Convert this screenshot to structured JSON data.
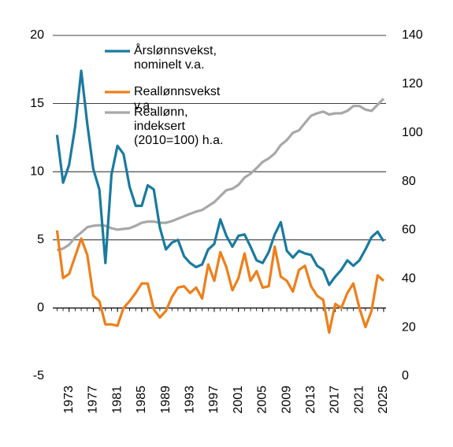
{
  "chart_data": {
    "type": "line",
    "x": [
      1971,
      1972,
      1973,
      1974,
      1975,
      1976,
      1977,
      1978,
      1979,
      1980,
      1981,
      1982,
      1983,
      1984,
      1985,
      1986,
      1987,
      1988,
      1989,
      1990,
      1991,
      1992,
      1993,
      1994,
      1995,
      1996,
      1997,
      1998,
      1999,
      2000,
      2001,
      2002,
      2003,
      2004,
      2005,
      2006,
      2007,
      2008,
      2009,
      2010,
      2011,
      2012,
      2013,
      2014,
      2015,
      2016,
      2017,
      2018,
      2019,
      2020,
      2021,
      2022,
      2023,
      2024,
      2025
    ],
    "xlim": [
      1970.3,
      2025.4
    ],
    "xticks": [
      1973,
      1977,
      1981,
      1985,
      1989,
      1993,
      1997,
      2001,
      2005,
      2009,
      2013,
      2017,
      2021,
      2025
    ],
    "ylim": [
      -5,
      20
    ],
    "yticks": [
      -5,
      0,
      5,
      10,
      15,
      20
    ],
    "y2lim": [
      0,
      140
    ],
    "y2ticks": [
      0,
      20,
      40,
      60,
      80,
      100,
      120,
      140
    ],
    "grid": true,
    "series": [
      {
        "name": "Årslønnsvekst, nominelt v.a.",
        "color": "#1a7aa0",
        "values": [
          12.7,
          9.2,
          10.5,
          13.3,
          17.4,
          13.5,
          10.2,
          8.7,
          3.3,
          9.8,
          11.9,
          11.3,
          8.9,
          7.5,
          7.5,
          9.0,
          8.7,
          5.9,
          4.3,
          4.8,
          5.0,
          3.8,
          3.3,
          3.0,
          3.2,
          4.3,
          4.7,
          6.5,
          5.3,
          4.5,
          5.3,
          5.4,
          4.5,
          3.5,
          3.3,
          4.1,
          5.4,
          6.3,
          4.2,
          3.7,
          4.2,
          4.0,
          3.9,
          3.1,
          2.8,
          1.7,
          2.3,
          2.8,
          3.5,
          3.1,
          3.5,
          4.3,
          5.2,
          5.6,
          4.9
        ]
      },
      {
        "name": "Reallønnsvekst v.a.",
        "color": "#ee7f1a",
        "values": [
          5.7,
          2.2,
          2.5,
          3.8,
          5.1,
          3.9,
          0.9,
          0.5,
          -1.2,
          -1.2,
          -1.3,
          0.0,
          0.5,
          1.1,
          1.8,
          1.8,
          -0.1,
          -0.7,
          -0.2,
          0.8,
          1.5,
          1.6,
          1.1,
          1.5,
          0.7,
          3.2,
          2.0,
          4.1,
          3.0,
          1.3,
          2.2,
          4.0,
          2.0,
          2.7,
          1.5,
          1.6,
          4.5,
          2.3,
          2.0,
          1.2,
          2.8,
          3.1,
          1.6,
          0.9,
          0.6,
          -1.8,
          0.3,
          0.0,
          1.1,
          1.8,
          0.0,
          -1.4,
          -0.2,
          2.4,
          2.0
        ]
      },
      {
        "name": "Reallønn, indeksert (2010=100) h.a.",
        "color": "#a8a8a8",
        "axis": "y2",
        "values": [
          51.8,
          52.4,
          54,
          57,
          59,
          61.2,
          61.8,
          62,
          61.8,
          60.8,
          60.2,
          60.5,
          60.8,
          61.8,
          63,
          63.5,
          63.5,
          63,
          63,
          63.7,
          64.7,
          65.7,
          66.7,
          67.6,
          68.3,
          69.9,
          71.5,
          74,
          76.4,
          77,
          78.6,
          81.6,
          83.2,
          85.5,
          88,
          89.5,
          91.5,
          95,
          97,
          100,
          101,
          104,
          107,
          108,
          108.7,
          107.5,
          108,
          108,
          109,
          111,
          111,
          109.5,
          109,
          111.5,
          114
        ]
      }
    ]
  }
}
